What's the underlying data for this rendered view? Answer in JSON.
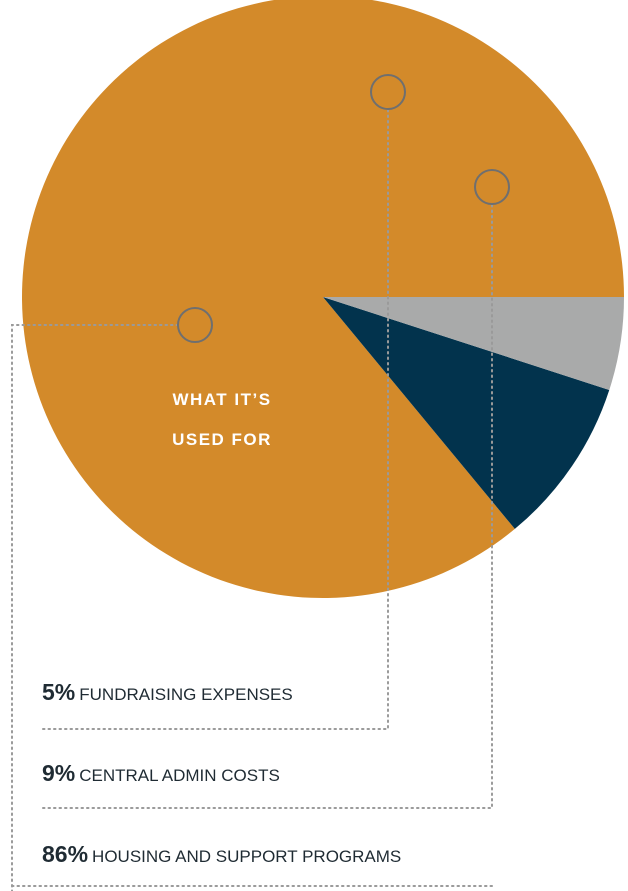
{
  "center_label": {
    "line1": "WHAT IT’S",
    "line2": "USED FOR"
  },
  "chart_data": {
    "type": "pie",
    "slices": [
      {
        "value": 86,
        "percent_label": "86%",
        "label": "HOUSING AND SUPPORT PROGRAMS",
        "color": "#D38A2A"
      },
      {
        "value": 9,
        "percent_label": "9%",
        "label": "CENTRAL ADMIN COSTS",
        "color": "#02334D"
      },
      {
        "value": 5,
        "percent_label": "5%",
        "label": "FUNDRAISING EXPENSES",
        "color": "#A9AAAA"
      }
    ],
    "title": "",
    "legend": "bottom"
  },
  "colors": {
    "text": "#1F2B33",
    "leader": "#9A9A9A",
    "marker": "#6F6F6F"
  }
}
